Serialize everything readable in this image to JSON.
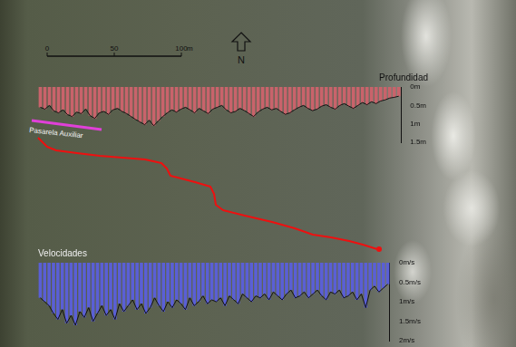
{
  "scale_bar": {
    "ticks": [
      0,
      50,
      100
    ],
    "unit": "m"
  },
  "north_label": "N",
  "path_label": "Pasarela Auxiliar",
  "chart_data": [
    {
      "type": "bar",
      "title": "Profundidad",
      "categories": [
        null,
        null,
        null,
        null,
        null,
        null,
        null,
        null,
        null,
        null,
        null,
        null,
        null,
        null,
        null,
        null,
        null,
        null,
        null,
        null,
        null,
        null,
        null,
        null,
        null,
        null,
        null,
        null,
        null,
        null,
        null,
        null,
        null,
        null,
        null,
        null,
        null,
        null,
        null,
        null,
        null,
        null,
        null,
        null,
        null,
        null,
        null,
        null,
        null,
        null,
        null,
        null,
        null,
        null,
        null,
        null,
        null,
        null,
        null,
        null,
        null,
        null,
        null,
        null,
        null,
        null,
        null,
        null,
        null,
        null,
        null,
        null,
        null,
        null,
        null,
        null,
        null,
        null,
        null,
        null
      ],
      "values": [
        0.55,
        0.6,
        0.5,
        0.65,
        0.7,
        0.62,
        0.75,
        0.8,
        0.68,
        0.72,
        0.6,
        0.78,
        0.85,
        0.7,
        0.66,
        0.74,
        0.62,
        0.58,
        0.66,
        0.72,
        0.8,
        0.88,
        0.95,
        1.02,
        0.9,
        1.05,
        0.92,
        0.8,
        0.7,
        0.62,
        0.68,
        0.6,
        0.55,
        0.62,
        0.7,
        0.58,
        0.65,
        0.72,
        0.6,
        0.55,
        0.5,
        0.62,
        0.7,
        0.66,
        0.58,
        0.64,
        0.72,
        0.8,
        0.68,
        0.6,
        0.55,
        0.62,
        0.58,
        0.66,
        0.74,
        0.7,
        0.62,
        0.55,
        0.5,
        0.58,
        0.64,
        0.6,
        0.52,
        0.48,
        0.55,
        0.6,
        0.5,
        0.45,
        0.52,
        0.58,
        0.5,
        0.42,
        0.48,
        0.4,
        0.45,
        0.38,
        0.35,
        0.3,
        0.28,
        0.25
      ],
      "color": "#c9636b",
      "ylim": [
        0,
        1.5
      ],
      "yticks": [
        {
          "value": 0,
          "label": "0m"
        },
        {
          "value": 0.5,
          "label": "0.5m"
        },
        {
          "value": 1,
          "label": "1m"
        },
        {
          "value": 1.5,
          "label": "1.5m"
        }
      ],
      "grid": false,
      "tick_labels": "y"
    },
    {
      "type": "bar",
      "title": "Velocidades",
      "categories": [
        null,
        null,
        null,
        null,
        null,
        null,
        null,
        null,
        null,
        null,
        null,
        null,
        null,
        null,
        null,
        null,
        null,
        null,
        null,
        null,
        null,
        null,
        null,
        null,
        null,
        null,
        null,
        null,
        null,
        null,
        null,
        null,
        null,
        null,
        null,
        null,
        null,
        null,
        null,
        null,
        null,
        null,
        null,
        null,
        null,
        null,
        null,
        null,
        null,
        null,
        null,
        null,
        null,
        null,
        null,
        null,
        null,
        null,
        null,
        null,
        null,
        null,
        null,
        null,
        null,
        null,
        null,
        null,
        null,
        null,
        null,
        null,
        null,
        null,
        null,
        null,
        null,
        null,
        null,
        null
      ],
      "values": [
        0.9,
        1.0,
        1.1,
        1.3,
        1.45,
        1.2,
        1.55,
        1.35,
        1.6,
        1.25,
        1.4,
        1.15,
        1.5,
        1.3,
        1.1,
        1.35,
        1.2,
        1.45,
        1.05,
        1.25,
        1.1,
        0.95,
        1.2,
        1.05,
        1.3,
        1.15,
        0.9,
        1.1,
        1.25,
        1.0,
        1.15,
        0.95,
        1.05,
        1.2,
        0.9,
        1.1,
        1.0,
        0.85,
        1.05,
        0.95,
        1.0,
        0.9,
        1.1,
        0.85,
        0.95,
        1.05,
        0.8,
        0.9,
        1.0,
        0.85,
        0.9,
        0.8,
        0.95,
        0.75,
        0.85,
        0.95,
        0.8,
        0.7,
        0.9,
        0.85,
        0.75,
        0.9,
        0.8,
        0.7,
        0.85,
        0.95,
        0.75,
        0.8,
        0.7,
        0.9,
        0.85,
        0.75,
        0.95,
        0.8,
        1.15,
        0.7,
        0.6,
        0.75,
        0.65,
        0.55
      ],
      "color": "#5a5fd6",
      "ylim": [
        0,
        2
      ],
      "yticks": [
        {
          "value": 0,
          "label": "0m/s"
        },
        {
          "value": 0.5,
          "label": "0.5m/s"
        },
        {
          "value": 1,
          "label": "1m/s"
        },
        {
          "value": 1.5,
          "label": "1.5m/s"
        },
        {
          "value": 2,
          "label": "2m/s"
        }
      ],
      "grid": false,
      "tick_labels": "y"
    }
  ]
}
